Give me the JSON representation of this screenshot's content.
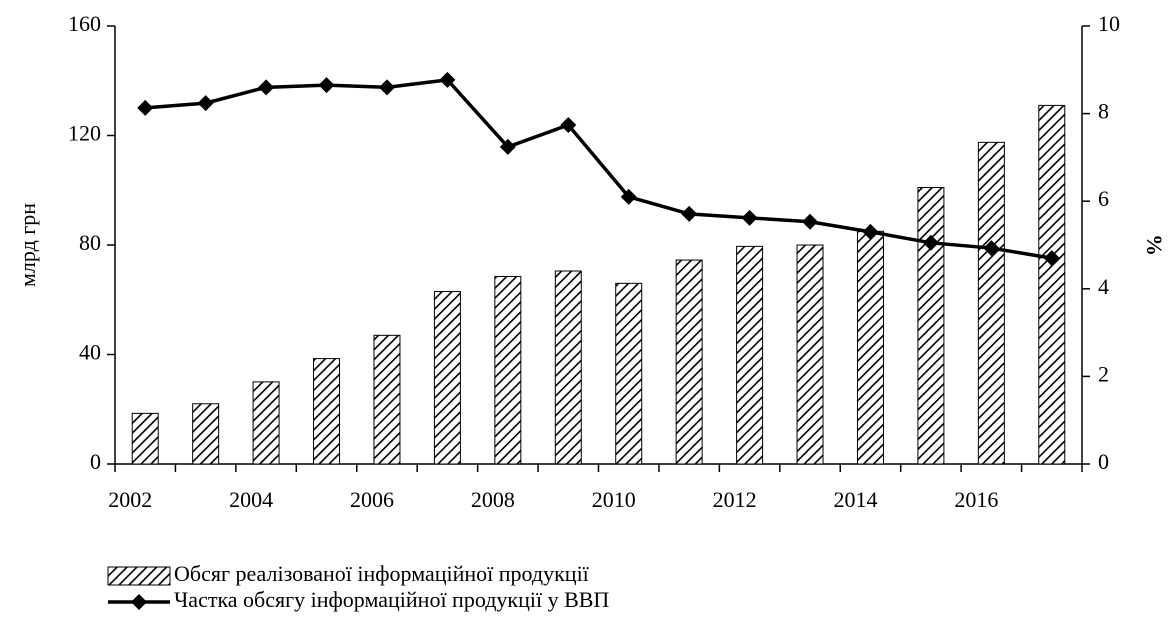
{
  "chart_data": {
    "type": "bar",
    "categories": [
      "2002",
      null,
      "2004",
      null,
      "2006",
      null,
      "2008",
      null,
      "2010",
      null,
      "2012",
      null,
      "2014",
      null,
      "2016",
      null
    ],
    "series": [
      {
        "name": "Обсяг реалізованої інформаційної продукції",
        "type": "bar",
        "color": "#000000",
        "values": [
          18.5,
          22,
          30,
          38.5,
          47,
          63,
          68.5,
          70.5,
          66,
          74.5,
          79.5,
          80,
          85,
          101,
          117.5,
          131
        ]
      },
      {
        "name": "Частка обсягу інформаційної продукції у ВВП",
        "type": "line",
        "axis": "y2",
        "color": "#000000",
        "values": [
          8.13,
          8.24,
          8.6,
          8.65,
          8.6,
          8.77,
          7.24,
          7.74,
          6.1,
          5.71,
          5.62,
          5.53,
          5.3,
          5.05,
          4.93,
          4.7
        ]
      }
    ],
    "ylabel": "млрд грн",
    "y2label": "%",
    "ylim": [
      0,
      160
    ],
    "yticks": [
      0,
      40,
      80,
      120,
      160
    ],
    "y2lim": [
      0,
      10
    ],
    "y2ticks": [
      0,
      2,
      4,
      6,
      8,
      10
    ],
    "legend": "bottom"
  }
}
